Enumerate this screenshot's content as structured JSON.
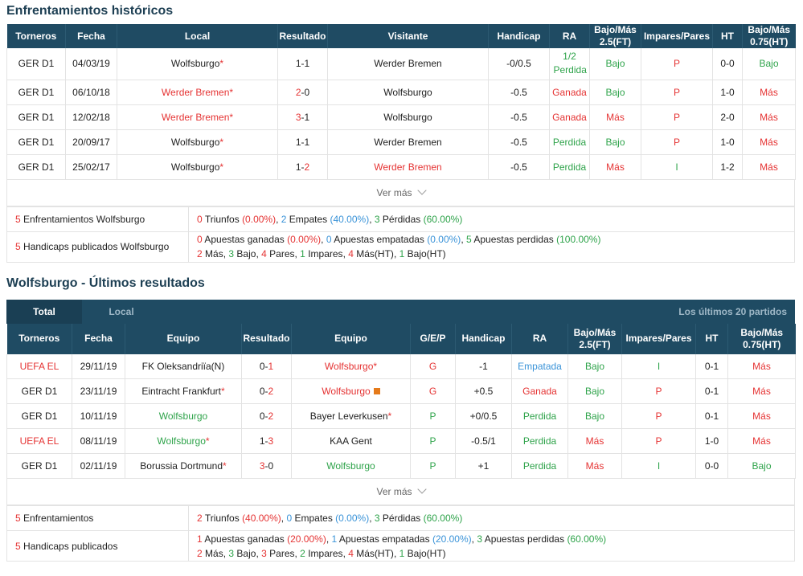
{
  "h2h": {
    "title": "Enfrentamientos históricos",
    "headers": [
      "Torneros",
      "Fecha",
      "Local",
      "Resultado",
      "Visitante",
      "Handicap",
      "RA",
      "Bajo/Más 2.5(FT)",
      "Impares/Pares",
      "HT",
      "Bajo/Más 0.75(HT)"
    ],
    "rows": [
      {
        "league": "GER D1",
        "date": "04/03/19",
        "home": "Wolfsburgo",
        "home_star": "*",
        "home_color": "dark",
        "score_h": "1",
        "score_a": "1",
        "score_h_color": "dark",
        "score_a_color": "dark",
        "away": "Werder Bremen",
        "away_star": "",
        "away_color": "dark",
        "handicap": "-0/0.5",
        "ra": "1/2 Perdida",
        "ra_color": "green",
        "ou": "Bajo",
        "ou_color": "green",
        "oe": "P",
        "oe_color": "red",
        "ht": "0-0",
        "ht_ou": "Bajo",
        "ht_ou_color": "green"
      },
      {
        "league": "GER D1",
        "date": "06/10/18",
        "home": "Werder Bremen",
        "home_star": "*",
        "home_color": "red",
        "score_h": "2",
        "score_a": "0",
        "score_h_color": "red",
        "score_a_color": "dark",
        "away": "Wolfsburgo",
        "away_star": "",
        "away_color": "dark",
        "handicap": "-0.5",
        "ra": "Ganada",
        "ra_color": "red",
        "ou": "Bajo",
        "ou_color": "green",
        "oe": "P",
        "oe_color": "red",
        "ht": "1-0",
        "ht_ou": "Más",
        "ht_ou_color": "red"
      },
      {
        "league": "GER D1",
        "date": "12/02/18",
        "home": "Werder Bremen",
        "home_star": "*",
        "home_color": "red",
        "score_h": "3",
        "score_a": "1",
        "score_h_color": "red",
        "score_a_color": "dark",
        "away": "Wolfsburgo",
        "away_star": "",
        "away_color": "dark",
        "handicap": "-0.5",
        "ra": "Ganada",
        "ra_color": "red",
        "ou": "Más",
        "ou_color": "red",
        "oe": "P",
        "oe_color": "red",
        "ht": "2-0",
        "ht_ou": "Más",
        "ht_ou_color": "red"
      },
      {
        "league": "GER D1",
        "date": "20/09/17",
        "home": "Wolfsburgo",
        "home_star": "*",
        "home_color": "dark",
        "score_h": "1",
        "score_a": "1",
        "score_h_color": "dark",
        "score_a_color": "dark",
        "away": "Werder Bremen",
        "away_star": "",
        "away_color": "dark",
        "handicap": "-0.5",
        "ra": "Perdida",
        "ra_color": "green",
        "ou": "Bajo",
        "ou_color": "green",
        "oe": "P",
        "oe_color": "red",
        "ht": "1-0",
        "ht_ou": "Más",
        "ht_ou_color": "red"
      },
      {
        "league": "GER D1",
        "date": "25/02/17",
        "home": "Wolfsburgo",
        "home_star": "*",
        "home_color": "dark",
        "score_h": "1",
        "score_a": "2",
        "score_h_color": "dark",
        "score_a_color": "red",
        "away": "Werder Bremen",
        "away_star": "",
        "away_color": "red",
        "handicap": "-0.5",
        "ra": "Perdida",
        "ra_color": "green",
        "ou": "Más",
        "ou_color": "red",
        "oe": "I",
        "oe_color": "green",
        "ht": "1-2",
        "ht_ou": "Más",
        "ht_ou_color": "red"
      }
    ],
    "ver_mas": "Ver más",
    "summary": {
      "row1": {
        "count": "5",
        "label": "Enfrentamientos Wolfsburgo",
        "w": "0",
        "w_lbl": "Triunfos",
        "w_pct": "(0.00%)",
        "d": "2",
        "d_lbl": "Empates",
        "d_pct": "(40.00%)",
        "l": "3",
        "l_lbl": "Pérdidas",
        "l_pct": "(60.00%)"
      },
      "row2": {
        "count": "5",
        "label": "Handicaps publicados Wolfsburgo",
        "a": "0",
        "a_lbl": "Apuestas ganadas",
        "a_pct": "(0.00%)",
        "b": "0",
        "b_lbl": "Apuestas empatadas",
        "b_pct": "(0.00%)",
        "c": "5",
        "c_lbl": "Apuestas perdidas",
        "c_pct": "(100.00%)",
        "m": "2",
        "m_lbl": "Más",
        "ba": "3",
        "ba_lbl": "Bajo",
        "p": "4",
        "p_lbl": "Pares",
        "i": "1",
        "i_lbl": "Impares",
        "mht": "4",
        "mht_lbl": "Más(HT)",
        "bht": "1",
        "bht_lbl": "Bajo(HT)"
      }
    }
  },
  "recent": {
    "title": "Wolfsburgo - Últimos resultados",
    "tabs": {
      "total": "Total",
      "local": "Local",
      "right": "Los últimos 20 partidos"
    },
    "headers": [
      "Torneros",
      "Fecha",
      "Equipo",
      "Resultado",
      "Equipo",
      "G/E/P",
      "Handicap",
      "RA",
      "Bajo/Más 2.5(FT)",
      "Impares/Pares",
      "HT",
      "Bajo/Más 0.75(HT)"
    ],
    "rows": [
      {
        "league": "UEFA EL",
        "league_color": "red",
        "date": "29/11/19",
        "home": "FK Oleksandriïa(N)",
        "home_star": "",
        "home_color": "dark",
        "score_h": "0",
        "score_a": "1",
        "score_h_color": "dark",
        "score_a_color": "red",
        "away": "Wolfsburgo",
        "away_star": "*",
        "away_color": "red",
        "away_flag": false,
        "gep": "G",
        "gep_color": "red",
        "handicap": "-1",
        "ra": "Empatada",
        "ra_color": "blue",
        "ou": "Bajo",
        "ou_color": "green",
        "oe": "I",
        "oe_color": "green",
        "ht": "0-1",
        "ht_ou": "Más",
        "ht_ou_color": "red"
      },
      {
        "league": "GER D1",
        "league_color": "dark",
        "date": "23/11/19",
        "home": "Eintracht Frankfurt",
        "home_star": "*",
        "home_color": "dark",
        "score_h": "0",
        "score_a": "2",
        "score_h_color": "dark",
        "score_a_color": "red",
        "away": "Wolfsburgo",
        "away_star": "",
        "away_color": "red",
        "away_flag": true,
        "gep": "G",
        "gep_color": "red",
        "handicap": "+0.5",
        "ra": "Ganada",
        "ra_color": "red",
        "ou": "Bajo",
        "ou_color": "green",
        "oe": "P",
        "oe_color": "red",
        "ht": "0-1",
        "ht_ou": "Más",
        "ht_ou_color": "red"
      },
      {
        "league": "GER D1",
        "league_color": "dark",
        "date": "10/11/19",
        "home": "Wolfsburgo",
        "home_star": "",
        "home_color": "green",
        "score_h": "0",
        "score_a": "2",
        "score_h_color": "dark",
        "score_a_color": "red",
        "away": "Bayer Leverkusen",
        "away_star": "*",
        "away_color": "dark",
        "away_flag": false,
        "gep": "P",
        "gep_color": "green",
        "handicap": "+0/0.5",
        "ra": "Perdida",
        "ra_color": "green",
        "ou": "Bajo",
        "ou_color": "green",
        "oe": "P",
        "oe_color": "red",
        "ht": "0-1",
        "ht_ou": "Más",
        "ht_ou_color": "red"
      },
      {
        "league": "UEFA EL",
        "league_color": "red",
        "date": "08/11/19",
        "home": "Wolfsburgo",
        "home_star": "*",
        "home_color": "green",
        "score_h": "1",
        "score_a": "3",
        "score_h_color": "dark",
        "score_a_color": "red",
        "away": "KAA Gent",
        "away_star": "",
        "away_color": "dark",
        "away_flag": false,
        "gep": "P",
        "gep_color": "green",
        "handicap": "-0.5/1",
        "ra": "Perdida",
        "ra_color": "green",
        "ou": "Más",
        "ou_color": "red",
        "oe": "P",
        "oe_color": "red",
        "ht": "1-0",
        "ht_ou": "Más",
        "ht_ou_color": "red"
      },
      {
        "league": "GER D1",
        "league_color": "dark",
        "date": "02/11/19",
        "home": "Borussia Dortmund",
        "home_star": "*",
        "home_color": "dark",
        "score_h": "3",
        "score_a": "0",
        "score_h_color": "red",
        "score_a_color": "dark",
        "away": "Wolfsburgo",
        "away_star": "",
        "away_color": "green",
        "away_flag": false,
        "gep": "P",
        "gep_color": "green",
        "handicap": "+1",
        "ra": "Perdida",
        "ra_color": "green",
        "ou": "Más",
        "ou_color": "red",
        "oe": "I",
        "oe_color": "green",
        "ht": "0-0",
        "ht_ou": "Bajo",
        "ht_ou_color": "green"
      }
    ],
    "ver_mas": "Ver más",
    "summary": {
      "row1": {
        "count": "5",
        "label": "Enfrentamientos",
        "w": "2",
        "w_lbl": "Triunfos",
        "w_pct": "(40.00%)",
        "d": "0",
        "d_lbl": "Empates",
        "d_pct": "(0.00%)",
        "l": "3",
        "l_lbl": "Pérdidas",
        "l_pct": "(60.00%)"
      },
      "row2": {
        "count": "5",
        "label": "Handicaps publicados",
        "a": "1",
        "a_lbl": "Apuestas ganadas",
        "a_pct": "(20.00%)",
        "b": "1",
        "b_lbl": "Apuestas empatadas",
        "b_pct": "(20.00%)",
        "c": "3",
        "c_lbl": "Apuestas perdidas",
        "c_pct": "(60.00%)",
        "m": "2",
        "m_lbl": "Más",
        "ba": "3",
        "ba_lbl": "Bajo",
        "p": "3",
        "p_lbl": "Pares",
        "i": "2",
        "i_lbl": "Impares",
        "mht": "4",
        "mht_lbl": "Más(HT)",
        "bht": "1",
        "bht_lbl": "Bajo(HT)"
      }
    }
  }
}
